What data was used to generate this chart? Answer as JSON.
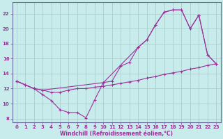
{
  "bg_color": "#c8ecec",
  "grid_color": "#aacccc",
  "line_color": "#993399",
  "marker_color": "#993399",
  "xlabel": "Windchill (Refroidissement éolien,°C)",
  "xlabel_color": "#993399",
  "tick_color": "#993399",
  "ylim": [
    7.5,
    23.5
  ],
  "xlim": [
    -0.5,
    23.5
  ],
  "yticks": [
    8,
    10,
    12,
    14,
    16,
    18,
    20,
    22
  ],
  "xticks": [
    0,
    1,
    2,
    3,
    4,
    5,
    6,
    7,
    8,
    9,
    10,
    11,
    12,
    13,
    14,
    15,
    16,
    17,
    18,
    19,
    20,
    21,
    22,
    23
  ],
  "curve1_x": [
    0,
    1,
    2,
    3,
    4,
    5,
    6,
    7,
    8,
    9,
    10,
    11,
    12,
    13,
    14,
    15,
    16,
    17,
    18,
    19,
    20,
    21,
    22,
    23
  ],
  "curve1_y": [
    13.0,
    12.5,
    12.0,
    11.2,
    10.4,
    9.2,
    8.8,
    8.8,
    8.1,
    10.5,
    12.8,
    13.0,
    15.0,
    15.5,
    17.5,
    18.5,
    20.5,
    22.2,
    22.5,
    22.5,
    20.0,
    21.8,
    16.5,
    15.3
  ],
  "curve2_x": [
    0,
    1,
    2,
    3,
    4,
    5,
    6,
    7,
    8,
    9,
    10,
    11,
    12,
    13,
    14,
    15,
    16,
    17,
    18,
    19,
    20,
    21,
    22,
    23
  ],
  "curve2_y": [
    13.0,
    12.5,
    12.0,
    11.8,
    11.5,
    11.5,
    11.8,
    12.0,
    12.0,
    12.2,
    12.3,
    12.5,
    12.7,
    12.9,
    13.1,
    13.4,
    13.6,
    13.9,
    14.1,
    14.3,
    14.6,
    14.8,
    15.1,
    15.3
  ],
  "curve3_x": [
    0,
    2,
    3,
    10,
    14,
    15,
    16,
    17,
    18,
    19,
    20,
    21,
    22,
    23
  ],
  "curve3_y": [
    13.0,
    12.0,
    11.8,
    12.8,
    17.5,
    18.5,
    20.5,
    22.2,
    22.5,
    22.5,
    20.0,
    21.8,
    16.5,
    15.3
  ]
}
